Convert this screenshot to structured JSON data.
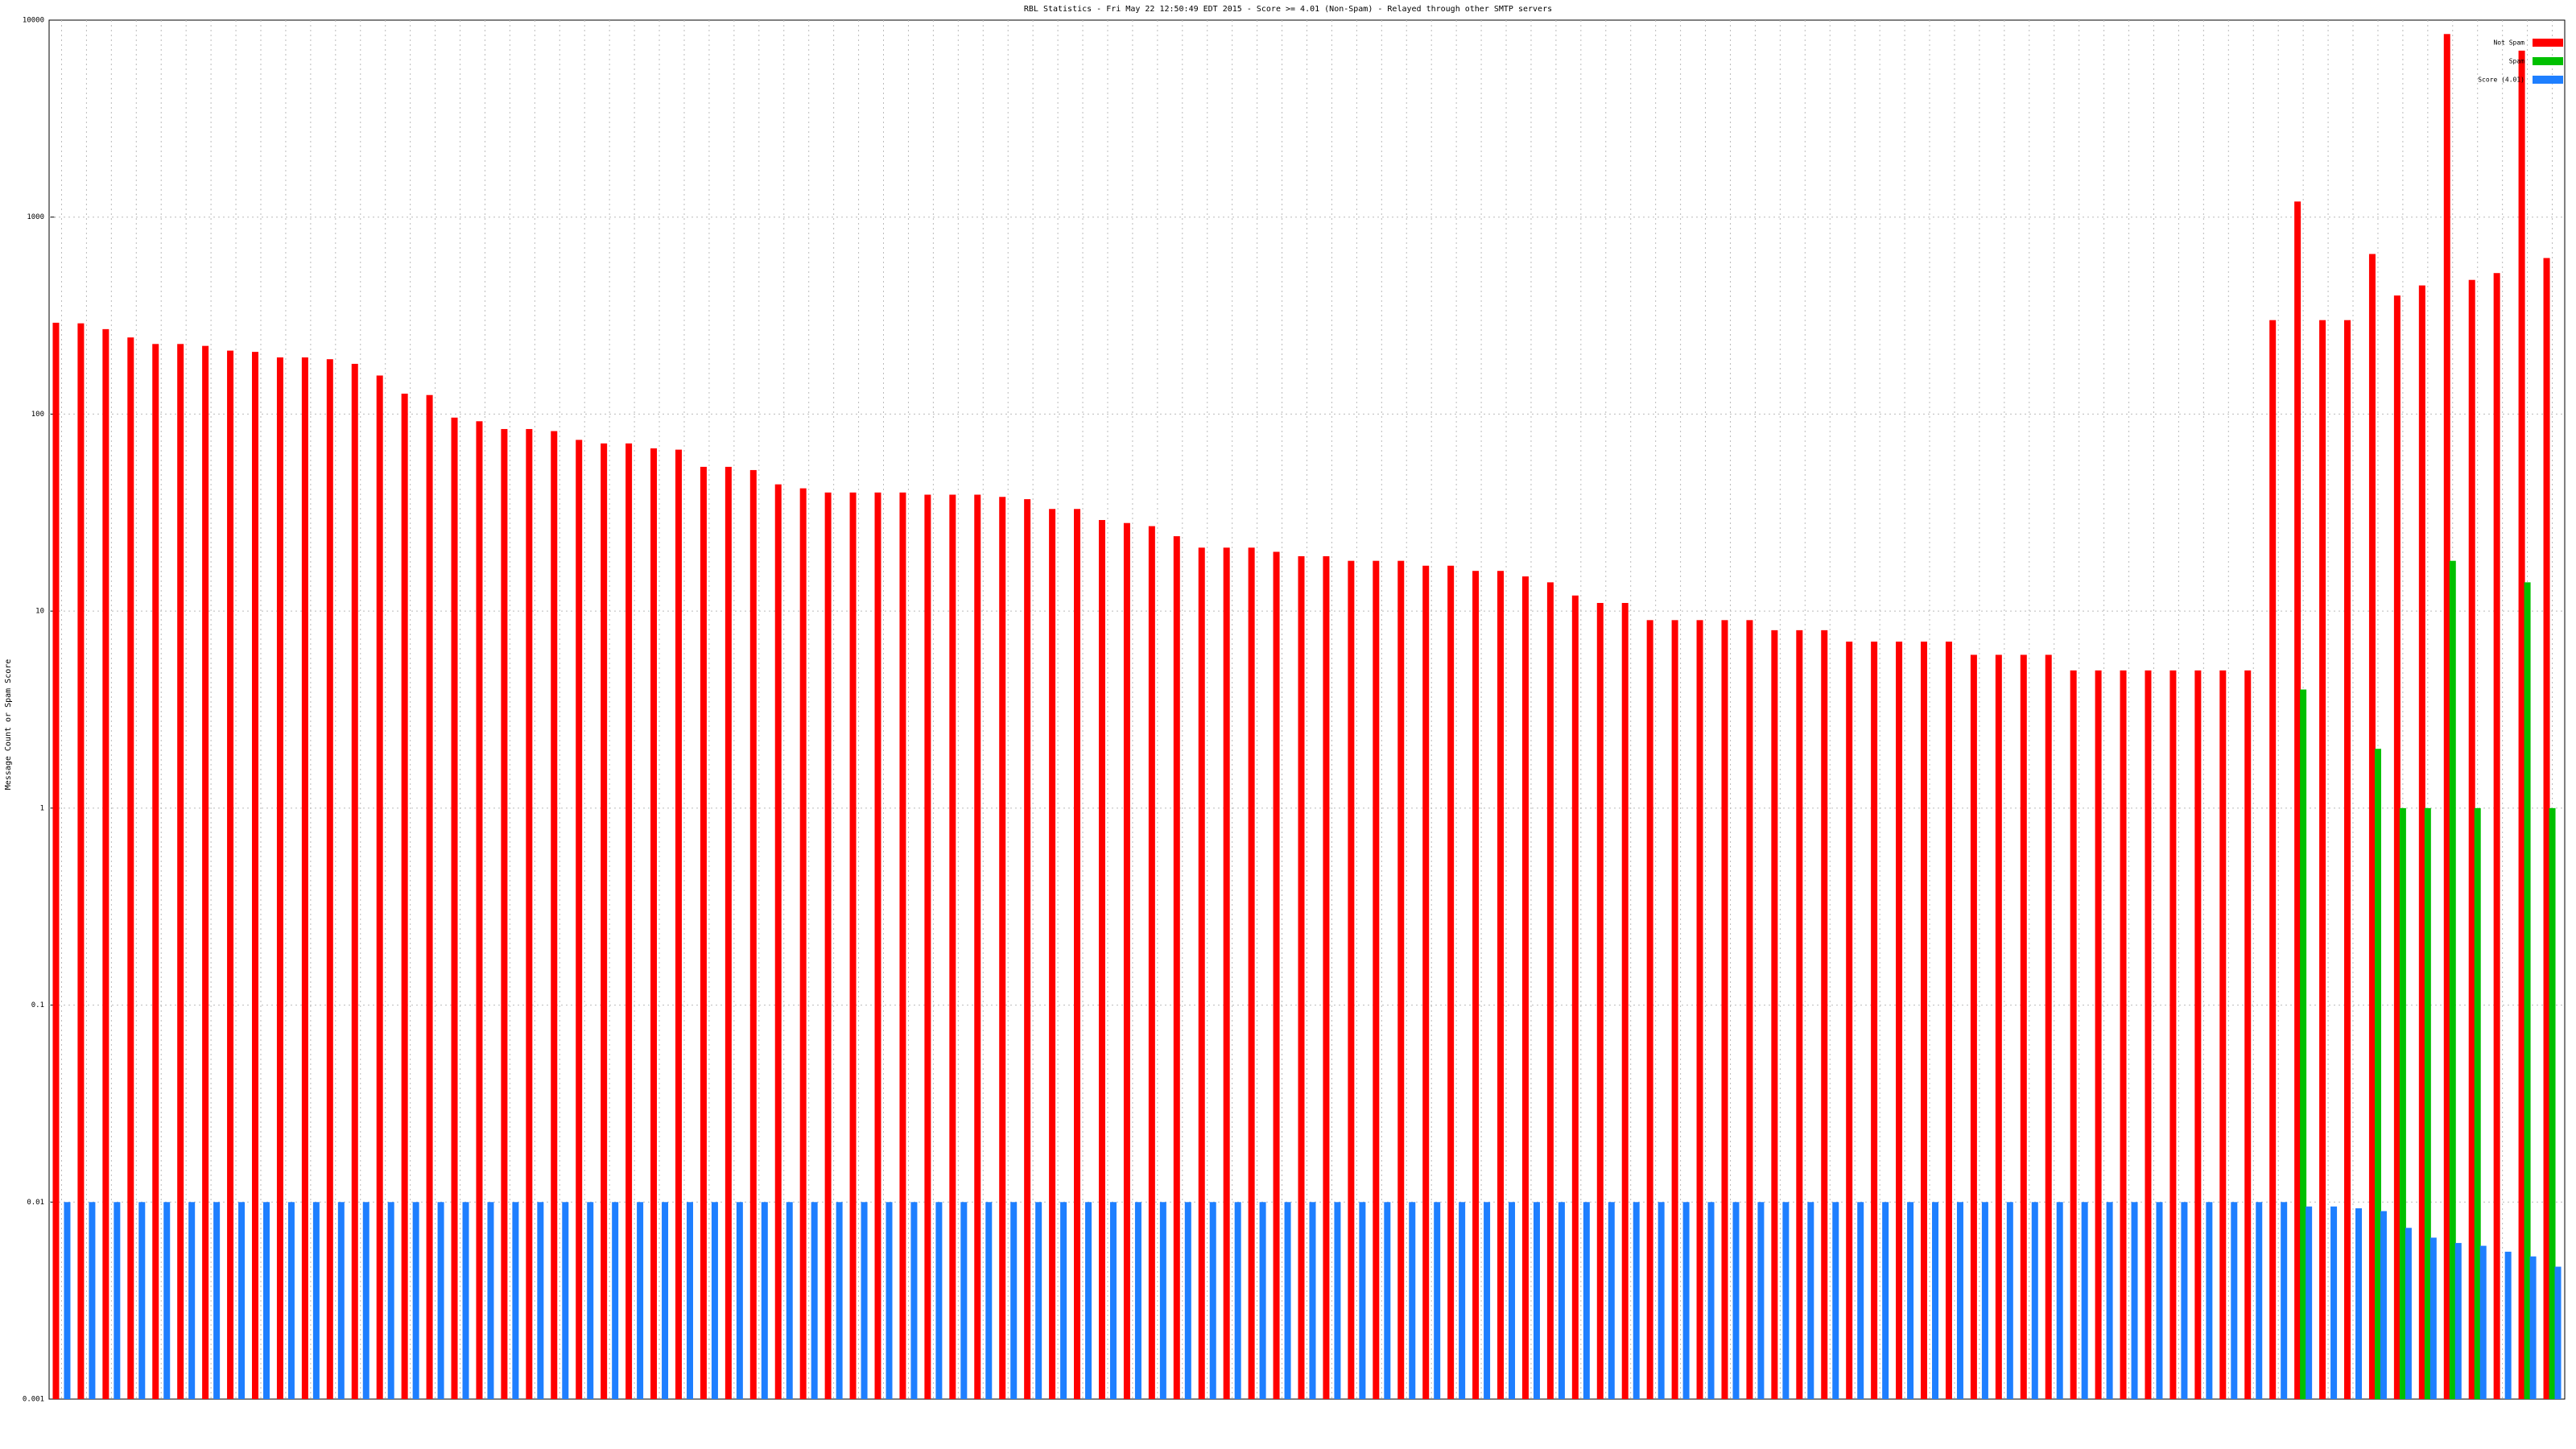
{
  "chart_data": {
    "type": "bar",
    "title": "RBL Statistics - Fri May 22 12:50:49 EDT 2015 - Score >= 4.01 (Non-Spam) - Relayed through other SMTP servers",
    "y_label": "Message Count or Spam Score",
    "log_scale": true,
    "grid": true,
    "legend": "upper right",
    "categories": [
      null,
      null,
      null,
      null,
      null,
      null,
      null,
      null,
      null,
      null,
      null,
      null,
      null,
      null,
      null,
      null,
      null,
      null,
      null,
      null,
      null,
      null,
      null,
      null,
      null,
      null,
      null,
      null,
      null,
      null,
      null,
      null,
      null,
      null,
      null,
      null,
      null,
      null,
      null,
      null,
      null,
      null,
      null,
      null,
      null,
      null,
      null,
      null,
      null,
      null,
      null,
      null,
      null,
      null,
      null,
      null,
      null,
      null,
      null,
      null,
      null,
      null,
      null,
      null,
      null,
      null,
      null,
      null,
      null,
      null,
      null,
      null,
      null,
      null,
      null,
      null,
      null,
      null,
      null,
      null,
      null,
      null,
      null,
      null,
      null,
      null,
      null,
      null,
      null,
      null,
      null,
      null,
      null,
      null,
      null,
      null,
      null,
      null,
      null,
      null,
      null
    ],
    "series": [
      {
        "name": "Not Spam",
        "color": "#ff0000",
        "values": [
          291,
          289,
          270,
          245,
          227,
          227,
          222,
          210,
          207,
          194,
          194,
          190,
          180,
          157,
          127,
          125,
          96,
          92,
          84,
          84,
          82,
          74,
          71,
          71,
          67,
          66,
          54,
          54,
          52,
          44,
          42,
          40,
          40,
          40,
          40,
          39,
          39,
          39,
          38,
          37,
          33,
          33,
          29,
          28,
          27,
          24,
          21,
          21,
          21,
          20,
          19,
          19,
          18,
          18,
          18,
          17,
          17,
          16,
          16,
          15,
          14,
          12,
          11,
          11,
          9,
          9,
          9,
          9,
          9,
          8,
          8,
          8,
          7,
          7,
          7,
          7,
          7,
          6,
          6,
          6,
          6,
          5,
          5,
          5,
          5,
          5,
          5,
          5,
          5,
          300,
          1200,
          300,
          300,
          650,
          400,
          450,
          8500,
          480,
          520,
          7000,
          620
        ]
      },
      {
        "name": "Spam",
        "color": "#00c000",
        "values": [
          null,
          null,
          null,
          null,
          null,
          null,
          null,
          null,
          null,
          null,
          null,
          null,
          null,
          null,
          null,
          null,
          null,
          null,
          null,
          null,
          null,
          null,
          null,
          null,
          null,
          null,
          null,
          null,
          null,
          null,
          null,
          null,
          null,
          null,
          null,
          null,
          null,
          null,
          null,
          null,
          null,
          null,
          null,
          null,
          null,
          null,
          null,
          null,
          null,
          null,
          null,
          null,
          null,
          null,
          null,
          null,
          null,
          null,
          null,
          null,
          null,
          null,
          null,
          null,
          null,
          null,
          null,
          null,
          null,
          null,
          null,
          null,
          null,
          null,
          null,
          null,
          null,
          null,
          null,
          null,
          null,
          null,
          null,
          null,
          null,
          null,
          null,
          null,
          null,
          null,
          4,
          null,
          null,
          2,
          1,
          1,
          18,
          1,
          null,
          14,
          1
        ]
      },
      {
        "name": "Score (4.01)",
        "color": "#1e7fff",
        "values": [
          0.01,
          0.01,
          0.01,
          0.01,
          0.01,
          0.01,
          0.01,
          0.01,
          0.01,
          0.01,
          0.01,
          0.01,
          0.01,
          0.01,
          0.01,
          0.01,
          0.01,
          0.01,
          0.01,
          0.01,
          0.01,
          0.01,
          0.01,
          0.01,
          0.01,
          0.01,
          0.01,
          0.01,
          0.01,
          0.01,
          0.01,
          0.01,
          0.01,
          0.01,
          0.01,
          0.01,
          0.01,
          0.01,
          0.01,
          0.01,
          0.01,
          0.01,
          0.01,
          0.01,
          0.01,
          0.01,
          0.01,
          0.01,
          0.01,
          0.01,
          0.01,
          0.01,
          0.01,
          0.01,
          0.01,
          0.01,
          0.01,
          0.01,
          0.01,
          0.01,
          0.01,
          0.01,
          0.01,
          0.01,
          0.01,
          0.01,
          0.01,
          0.01,
          0.01,
          0.01,
          0.01,
          0.01,
          0.01,
          0.01,
          0.01,
          0.01,
          0.01,
          0.01,
          0.01,
          0.01,
          0.01,
          0.01,
          0.01,
          0.01,
          0.01,
          0.01,
          0.01,
          0.01,
          0.01,
          0.01,
          0.0095,
          0.0095,
          0.0093,
          0.009,
          0.0074,
          0.0066,
          0.0062,
          0.006,
          0.0056,
          0.0053,
          0.0047
        ]
      }
    ],
    "ylim": [
      0.001,
      10000
    ],
    "yticks": [
      0.001,
      0.01,
      0.1,
      1,
      10,
      100,
      1000,
      10000
    ]
  }
}
